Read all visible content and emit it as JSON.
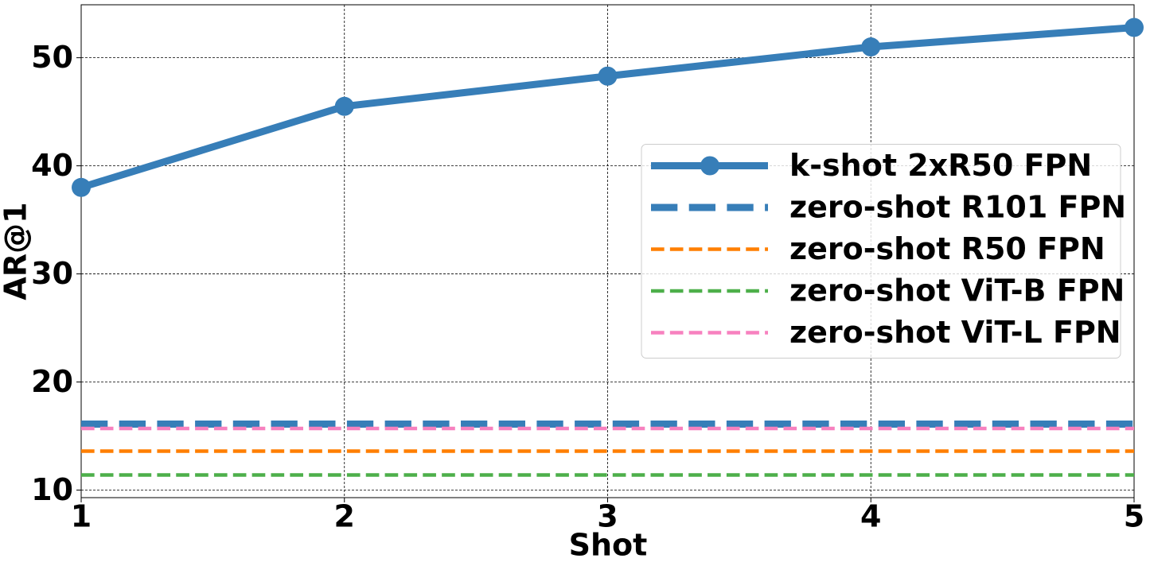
{
  "chart_data": {
    "type": "line",
    "x_label": "Shot",
    "y_label": "AR@1",
    "xlim": [
      1,
      5
    ],
    "ylim": [
      9.3,
      54.9
    ],
    "xticks": [
      1,
      2,
      3,
      4,
      5
    ],
    "yticks": [
      10,
      20,
      30,
      40,
      50
    ],
    "grid": true,
    "legend": "center right",
    "series": [
      {
        "name": "k-shot 2xR50 FPN",
        "color": "#377eb8",
        "linestyle": "solid",
        "linewidth": 9,
        "marker": "o",
        "x": [
          1,
          2,
          3,
          4,
          5
        ],
        "values": [
          38.0,
          45.5,
          48.3,
          51.0,
          52.8
        ]
      },
      {
        "name": "zero-shot R101 FPN",
        "color": "#377eb8",
        "linestyle": "dashed",
        "linewidth": 9,
        "x": [
          1,
          5
        ],
        "values": [
          16.1,
          16.1
        ]
      },
      {
        "name": "zero-shot R50 FPN",
        "color": "#ff7f00",
        "linestyle": "dashed",
        "linewidth": 4.5,
        "x": [
          1,
          5
        ],
        "values": [
          13.6,
          13.6
        ]
      },
      {
        "name": "zero-shot ViT-B FPN",
        "color": "#4daf4a",
        "linestyle": "dashed",
        "linewidth": 4.5,
        "x": [
          1,
          5
        ],
        "values": [
          11.4,
          11.4
        ]
      },
      {
        "name": "zero-shot ViT-L FPN",
        "color": "#f781bf",
        "linestyle": "dashed",
        "linewidth": 4.5,
        "x": [
          1,
          5
        ],
        "values": [
          15.7,
          15.7
        ]
      }
    ]
  }
}
